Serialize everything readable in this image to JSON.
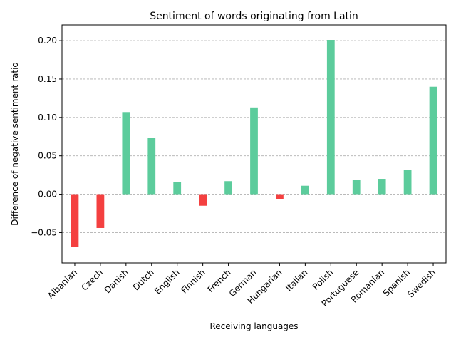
{
  "chart_data": {
    "type": "bar",
    "title": "Sentiment of words originating from Latin",
    "xlabel": "Receiving languages",
    "ylabel": "Difference of negative sentiment ratio",
    "categories": [
      "Albanian",
      "Czech",
      "Danish",
      "Dutch",
      "English",
      "Finnish",
      "French",
      "German",
      "Hungarian",
      "Italian",
      "Polish",
      "Portuguese",
      "Romanian",
      "Spanish",
      "Swedish"
    ],
    "values": [
      -0.069,
      -0.044,
      0.107,
      0.073,
      0.016,
      -0.015,
      0.017,
      0.113,
      -0.006,
      0.011,
      0.201,
      0.019,
      0.02,
      0.032,
      0.14
    ],
    "ylim": [
      -0.0895,
      0.2205
    ],
    "yticks": [
      -0.05,
      0.0,
      0.05,
      0.1,
      0.15,
      0.2
    ],
    "ytick_labels": [
      "−0.05",
      "0.00",
      "0.05",
      "0.10",
      "0.15",
      "0.20"
    ],
    "grid": "y-dashed",
    "colors": {
      "positive": "#5ccc9c",
      "negative": "#f44040"
    }
  }
}
